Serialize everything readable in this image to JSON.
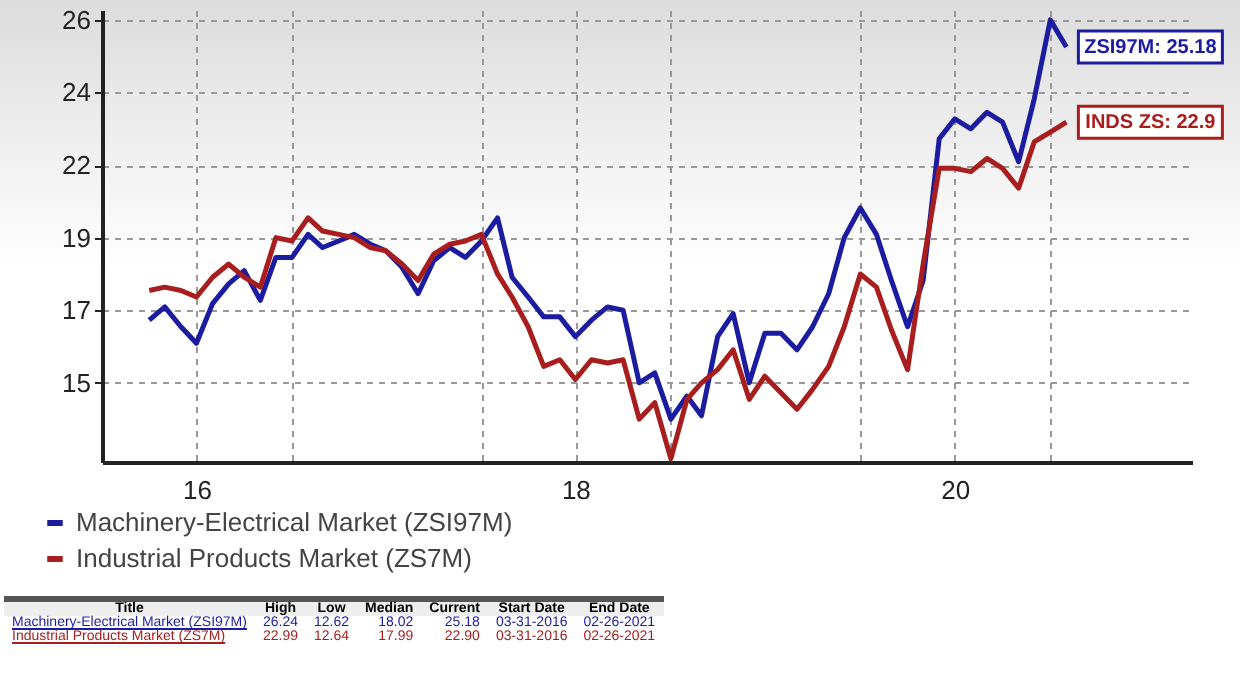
{
  "chart_data": {
    "type": "line",
    "x": [
      "2016-04",
      "2016-05",
      "2016-06",
      "2016-07",
      "2016-08",
      "2016-09",
      "2016-10",
      "2016-11",
      "2016-12",
      "2017-01",
      "2017-02",
      "2017-03",
      "2017-04",
      "2017-05",
      "2017-06",
      "2017-07",
      "2017-08",
      "2017-09",
      "2017-10",
      "2017-11",
      "2017-12",
      "2018-01",
      "2018-02",
      "2018-03",
      "2018-04",
      "2018-05",
      "2018-06",
      "2018-07",
      "2018-08",
      "2018-09",
      "2018-10",
      "2018-11",
      "2018-12",
      "2019-01",
      "2019-02",
      "2019-03",
      "2019-04",
      "2019-05",
      "2019-06",
      "2019-07",
      "2019-08",
      "2019-09",
      "2019-10",
      "2019-11",
      "2019-12",
      "2020-01",
      "2020-02",
      "2020-03",
      "2020-04",
      "2020-05",
      "2020-06",
      "2020-07",
      "2020-08",
      "2020-09",
      "2020-10",
      "2020-11",
      "2020-12",
      "2021-01",
      "2021-02"
    ],
    "series": [
      {
        "name": "Machinery-Electrical Market (ZSI97M)",
        "color": "#1c1ca0",
        "values": [
          16.9,
          17.3,
          16.7,
          16.2,
          17.4,
          18.0,
          18.4,
          17.5,
          18.8,
          18.8,
          19.5,
          19.1,
          19.3,
          19.5,
          19.2,
          19.0,
          18.5,
          17.7,
          18.7,
          19.1,
          18.8,
          19.3,
          20.0,
          18.2,
          17.6,
          17.0,
          17.0,
          16.4,
          16.9,
          17.3,
          17.2,
          15.0,
          15.3,
          13.9,
          14.6,
          14.0,
          16.4,
          17.1,
          15.0,
          16.5,
          16.5,
          16.0,
          16.7,
          17.7,
          19.4,
          20.3,
          19.5,
          18.1,
          16.7,
          18.1,
          22.4,
          23.0,
          22.7,
          23.2,
          22.9,
          21.7,
          23.6,
          26.0,
          25.18
        ]
      },
      {
        "name": "Industrial Products Market (ZS7M)",
        "color": "#a81e1e",
        "values": [
          17.8,
          17.9,
          17.8,
          17.6,
          18.2,
          18.6,
          18.2,
          17.9,
          19.4,
          19.3,
          20.0,
          19.6,
          19.5,
          19.4,
          19.1,
          19.0,
          18.6,
          18.1,
          18.9,
          19.2,
          19.3,
          19.5,
          18.3,
          17.6,
          16.7,
          15.5,
          15.7,
          15.1,
          15.7,
          15.6,
          15.7,
          13.9,
          14.4,
          12.7,
          14.5,
          15.0,
          15.4,
          16.0,
          14.5,
          15.2,
          14.7,
          14.2,
          14.8,
          15.5,
          16.7,
          18.3,
          17.9,
          16.6,
          15.4,
          18.6,
          21.5,
          21.5,
          21.4,
          21.8,
          21.5,
          20.9,
          22.3,
          22.6,
          22.9
        ]
      }
    ],
    "xlim": [
      "2016-01-01",
      "2021-10-01"
    ],
    "xticks": [
      {
        "value": "2016-07-01",
        "label": "16"
      },
      {
        "value": "2017-01-01",
        "label": null
      },
      {
        "value": "2018-01-01",
        "label": null
      },
      {
        "value": "2018-07-01",
        "label": "18"
      },
      {
        "value": "2019-01-01",
        "label": null
      },
      {
        "value": "2020-01-01",
        "label": null
      },
      {
        "value": "2020-07-01",
        "label": "20"
      },
      {
        "value": "2021-01-01",
        "label": null
      }
    ],
    "ylim": [
      12.6,
      26.3
    ],
    "yticks": [
      {
        "value": 15,
        "label": "15"
      },
      {
        "value": 17.2,
        "label": "17"
      },
      {
        "value": 19.4,
        "label": "19"
      },
      {
        "value": 21.6,
        "label": "22"
      },
      {
        "value": 23.8,
        "label": "24"
      },
      {
        "value": 26,
        "label": "26"
      }
    ],
    "grid": true,
    "legend": "bottom",
    "line_style": "solid",
    "annotations": [
      {
        "text": "ZSI97M: 25.18",
        "x": "2021-02",
        "y": 25.18
      },
      {
        "text": "INDS ZS: 22.9",
        "x": "2021-02",
        "y": 22.9
      },
      "Title",
      "High",
      "Low",
      "Median",
      "Current",
      "Start Date",
      "End Date",
      "Machinery-Electrical Market (ZSI97M)",
      "26.24",
      "12.62",
      "18.02",
      "25.18",
      "03-31-2016",
      "02-26-2021",
      "Industrial Products Market (ZS7M)",
      "22.99",
      "12.64",
      "17.99",
      "22.90",
      "03-31-2016",
      "02-26-2021"
    ]
  }
}
